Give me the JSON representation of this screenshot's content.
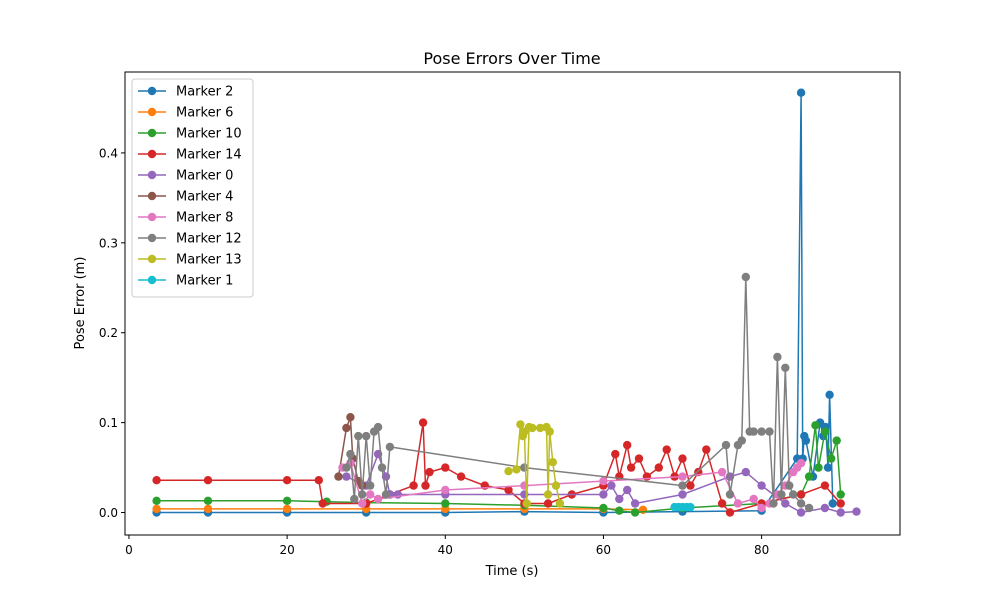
{
  "chart_data": {
    "type": "line",
    "title": "Pose Errors Over Time",
    "xlabel": "Time (s)",
    "ylabel": "Pose Error (m)",
    "xlim": [
      -0.5,
      97.5
    ],
    "ylim": [
      -0.025,
      0.49
    ],
    "xticks": [
      0,
      20,
      40,
      60,
      80
    ],
    "yticks": [
      0.0,
      0.1,
      0.2,
      0.3,
      0.4
    ],
    "xtick_labels": [
      "0",
      "20",
      "40",
      "60",
      "80"
    ],
    "ytick_labels": [
      "0.0",
      "0.1",
      "0.2",
      "0.3",
      "0.4"
    ],
    "grid": false,
    "legend_position": "top-left",
    "series": [
      {
        "name": "Marker 2",
        "color": "#1f77b4",
        "x": [
          3.5,
          10,
          20,
          30,
          40,
          50,
          60,
          70,
          80,
          84.5,
          85.0,
          85.2,
          85.4,
          85.6,
          86.5,
          87.4,
          87.8,
          88.1,
          88.4,
          88.6,
          89
        ],
        "y": [
          0.0,
          0.0,
          0.0,
          0.0,
          0.0,
          0.001,
          0.0,
          0.001,
          0.002,
          0.06,
          0.467,
          0.06,
          0.085,
          0.08,
          0.04,
          0.1,
          0.085,
          0.095,
          0.05,
          0.131,
          0.01
        ]
      },
      {
        "name": "Marker 6",
        "color": "#ff7f0e",
        "x": [
          3.5,
          10,
          20,
          30,
          40,
          50,
          60,
          65
        ],
        "y": [
          0.004,
          0.004,
          0.004,
          0.004,
          0.004,
          0.004,
          0.004,
          0.003
        ]
      },
      {
        "name": "Marker 10",
        "color": "#2ca02c",
        "x": [
          3.5,
          10,
          20,
          25,
          30,
          40,
          50,
          60,
          62,
          64,
          70,
          80,
          85,
          86,
          86.8,
          87.2,
          88,
          88.8,
          89.5,
          90
        ],
        "y": [
          0.013,
          0.013,
          0.013,
          0.012,
          0.011,
          0.01,
          0.008,
          0.005,
          0.002,
          0.0,
          0.005,
          0.01,
          0.02,
          0.04,
          0.097,
          0.05,
          0.09,
          0.06,
          0.08,
          0.02
        ]
      },
      {
        "name": "Marker 14",
        "color": "#d62728",
        "x": [
          3.5,
          10,
          20,
          24,
          24.5,
          30,
          33,
          36,
          37.2,
          37.5,
          38,
          40,
          42,
          45,
          48,
          50,
          53,
          56,
          60,
          61.5,
          62,
          63,
          63.5,
          64.5,
          65.5,
          67,
          68,
          69,
          70,
          71,
          72,
          73,
          75,
          76,
          80,
          85,
          88,
          90
        ],
        "y": [
          0.036,
          0.036,
          0.036,
          0.036,
          0.01,
          0.01,
          0.02,
          0.03,
          0.1,
          0.03,
          0.045,
          0.05,
          0.04,
          0.03,
          0.025,
          0.01,
          0.01,
          0.02,
          0.03,
          0.065,
          0.04,
          0.075,
          0.05,
          0.06,
          0.04,
          0.05,
          0.07,
          0.04,
          0.06,
          0.03,
          0.045,
          0.07,
          0.01,
          0.0,
          0.01,
          0.02,
          0.03,
          0.01
        ]
      },
      {
        "name": "Marker 0",
        "color": "#9467bd",
        "x": [
          27.5,
          30,
          31.5,
          32.5,
          33,
          34,
          40,
          50,
          60,
          61,
          62,
          63,
          64,
          70,
          76,
          78,
          80,
          83,
          85,
          88,
          90,
          92
        ],
        "y": [
          0.04,
          0.03,
          0.065,
          0.04,
          0.02,
          0.02,
          0.02,
          0.02,
          0.02,
          0.03,
          0.015,
          0.025,
          0.01,
          0.02,
          0.04,
          0.045,
          0.03,
          0.01,
          0.0,
          0.005,
          0.0,
          0.001
        ]
      },
      {
        "name": "Marker 4",
        "color": "#8c564b",
        "x": [
          26.5,
          27.5,
          28.0,
          28.3,
          29.0,
          29.5
        ],
        "y": [
          0.04,
          0.094,
          0.106,
          0.06,
          0.035,
          0.03
        ]
      },
      {
        "name": "Marker 8",
        "color": "#e377c2",
        "x": [
          27,
          28,
          29.5,
          30.5,
          31.5,
          40,
          50,
          60,
          70,
          75,
          77,
          79,
          80,
          81,
          82,
          83,
          84,
          84.5,
          85
        ],
        "y": [
          0.05,
          0.055,
          0.01,
          0.02,
          0.015,
          0.025,
          0.03,
          0.035,
          0.04,
          0.045,
          0.01,
          0.015,
          0.005,
          0.01,
          0.02,
          0.03,
          0.045,
          0.05,
          0.055
        ]
      },
      {
        "name": "Marker 12",
        "color": "#7f7f7f",
        "x": [
          27.5,
          28.0,
          28.5,
          29.0,
          29.5,
          30,
          30.5,
          31,
          31.5,
          32,
          32.5,
          33,
          50,
          70,
          75.5,
          76,
          77,
          77.5,
          78.0,
          78.5,
          79,
          80,
          81,
          81.5,
          82,
          82.5,
          83,
          83.5,
          84,
          85,
          86
        ],
        "y": [
          0.05,
          0.065,
          0.015,
          0.085,
          0.02,
          0.085,
          0.03,
          0.09,
          0.095,
          0.05,
          0.02,
          0.073,
          0.05,
          0.03,
          0.075,
          0.02,
          0.075,
          0.08,
          0.262,
          0.09,
          0.09,
          0.09,
          0.09,
          0.01,
          0.173,
          0.02,
          0.161,
          0.03,
          0.02,
          0.01,
          0.005
        ]
      },
      {
        "name": "Marker 13",
        "color": "#bcbd22",
        "x": [
          48,
          49,
          49.5,
          49.8,
          50,
          50.3,
          50.6,
          51,
          52,
          52.8,
          53,
          53.2,
          53.6,
          54,
          54.5
        ],
        "y": [
          0.046,
          0.048,
          0.098,
          0.085,
          0.09,
          0.01,
          0.095,
          0.094,
          0.094,
          0.095,
          0.02,
          0.09,
          0.056,
          0.03,
          0.01
        ]
      },
      {
        "name": "Marker 1",
        "color": "#17becf",
        "x": [
          69,
          69.5,
          70,
          70.5,
          71
        ],
        "y": [
          0.006,
          0.006,
          0.006,
          0.006,
          0.006
        ]
      }
    ]
  }
}
